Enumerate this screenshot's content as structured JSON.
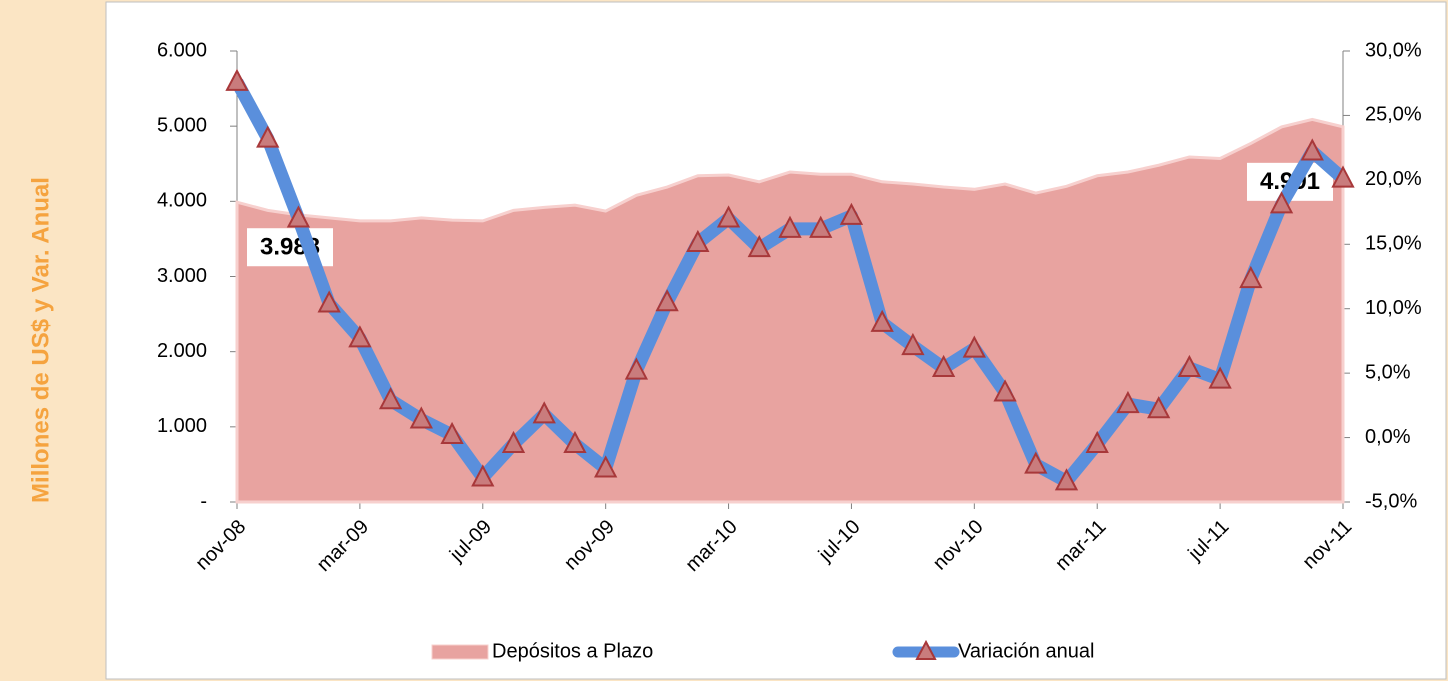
{
  "chart_data": {
    "type": "combo",
    "y_label": "Millones de US$ y Var. Anual",
    "categories": [
      "nov-08",
      null,
      null,
      null,
      "mar-09",
      null,
      null,
      null,
      "jul-09",
      null,
      null,
      null,
      "nov-09",
      null,
      null,
      null,
      "mar-10",
      null,
      null,
      null,
      "jul-10",
      null,
      null,
      null,
      "nov-10",
      null,
      null,
      null,
      "mar-11",
      null,
      null,
      null,
      "jul-11",
      null,
      null,
      null,
      "nov-11"
    ],
    "series": [
      {
        "name": "Depósitos a Plazo",
        "type": "area",
        "axis": "y",
        "color": "#e8a3a0",
        "values": [
          3988,
          3880,
          3820,
          3780,
          3740,
          3740,
          3780,
          3750,
          3740,
          3880,
          3920,
          3950,
          3870,
          4080,
          4190,
          4340,
          4350,
          4260,
          4390,
          4360,
          4360,
          4260,
          4230,
          4190,
          4160,
          4230,
          4110,
          4200,
          4340,
          4390,
          4480,
          4590,
          4570,
          4770,
          4990,
          5090,
          4991
        ],
        "value_labels": [
          "3.988",
          null,
          null,
          null,
          null,
          null,
          null,
          null,
          null,
          null,
          null,
          null,
          null,
          null,
          null,
          null,
          null,
          null,
          null,
          null,
          null,
          null,
          null,
          null,
          null,
          null,
          null,
          null,
          null,
          null,
          null,
          null,
          null,
          null,
          null,
          null,
          "4.991"
        ]
      },
      {
        "name": "Variación anual",
        "type": "line",
        "axis": "y2",
        "color": "#5a8fdc",
        "marker_color": "#a8383a",
        "values": [
          27.6,
          23.2,
          17.0,
          10.4,
          7.7,
          2.9,
          1.4,
          0.2,
          -3.1,
          -0.5,
          1.8,
          -0.5,
          -2.4,
          5.2,
          10.5,
          15.1,
          17.0,
          14.7,
          16.2,
          16.2,
          17.2,
          8.9,
          7.1,
          5.4,
          6.9,
          3.5,
          -2.1,
          -3.4,
          -0.5,
          2.6,
          2.2,
          5.4,
          4.5,
          12.3,
          18.1,
          22.2,
          20.1
        ]
      }
    ],
    "ylim": [
      0,
      6000
    ],
    "yticks": [
      {
        "value": 0,
        "label": "-"
      },
      {
        "value": 1000,
        "label": "1.000"
      },
      {
        "value": 2000,
        "label": "2.000"
      },
      {
        "value": 3000,
        "label": "3.000"
      },
      {
        "value": 4000,
        "label": "4.000"
      },
      {
        "value": 5000,
        "label": "5.000"
      },
      {
        "value": 6000,
        "label": "6.000"
      }
    ],
    "y2lim": [
      -5,
      30
    ],
    "y2ticks": [
      {
        "value": -5,
        "label": "-5,0%"
      },
      {
        "value": 0,
        "label": "0,0%"
      },
      {
        "value": 5,
        "label": "5,0%"
      },
      {
        "value": 10,
        "label": "10,0%"
      },
      {
        "value": 15,
        "label": "15,0%"
      },
      {
        "value": 20,
        "label": "20,0%"
      },
      {
        "value": 25,
        "label": "25,0%"
      },
      {
        "value": 30,
        "label": "30,0%"
      }
    ],
    "legend": "bottom"
  }
}
